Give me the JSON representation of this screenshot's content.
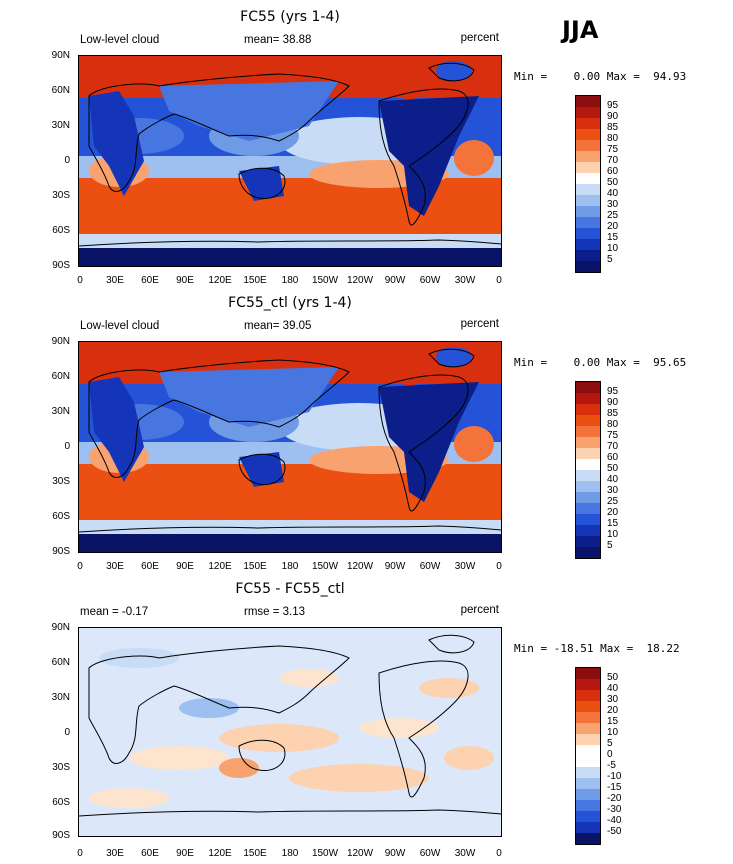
{
  "season": "JJA",
  "x_ticks": [
    "0",
    "30E",
    "60E",
    "90E",
    "120E",
    "150E",
    "180",
    "150W",
    "120W",
    "90W",
    "60W",
    "30W",
    "0"
  ],
  "y_ticks": [
    "90N",
    "60N",
    "30N",
    "0",
    "30S",
    "60S",
    "90S"
  ],
  "panels": [
    {
      "title": "FC55 (yrs 1-4)",
      "left_label": "Low-level cloud",
      "mid_label": "mean=  38.88",
      "right_label": "percent",
      "minmax": "Min =    0.00 Max =  94.93",
      "colorbar_labels": [
        "95",
        "90",
        "85",
        "80",
        "75",
        "70",
        "60",
        "50",
        "40",
        "30",
        "25",
        "20",
        "15",
        "10",
        "5"
      ]
    },
    {
      "title": "FC55_ctl (yrs 1-4)",
      "left_label": "Low-level cloud",
      "mid_label": "mean=  39.05",
      "right_label": "percent",
      "minmax": "Min =    0.00 Max =  95.65",
      "colorbar_labels": [
        "95",
        "90",
        "85",
        "80",
        "75",
        "70",
        "60",
        "50",
        "40",
        "30",
        "25",
        "20",
        "15",
        "10",
        "5"
      ]
    },
    {
      "title": "FC55 - FC55_ctl",
      "left_label": "mean =  -0.17",
      "mid_label": "rmse =   3.13",
      "right_label": "percent",
      "minmax": "Min = -18.51 Max =  18.22",
      "colorbar_labels": [
        "50",
        "40",
        "30",
        "20",
        "15",
        "10",
        "5",
        "0",
        "-5",
        "-10",
        "-15",
        "-20",
        "-30",
        "-40",
        "-50"
      ]
    }
  ],
  "colors": {
    "cloud_scale": [
      "#8b0d0d",
      "#b3170f",
      "#d8300f",
      "#ec4f12",
      "#f4733b",
      "#f8a270",
      "#fcd2b0",
      "#ffffff",
      "#c8dcf6",
      "#9dc0f0",
      "#6f9be6",
      "#4776e0",
      "#2553d8",
      "#1535b8",
      "#0c1e8a",
      "#0a1466"
    ],
    "diff_scale": [
      "#8b0d0d",
      "#b3170f",
      "#d8300f",
      "#ec4f12",
      "#f4733b",
      "#f8a270",
      "#fcd2b0",
      "#ffffff",
      "#ffffff",
      "#c8dcf6",
      "#9dc0f0",
      "#6f9be6",
      "#4776e0",
      "#2553d8",
      "#1535b8",
      "#0a1466"
    ]
  }
}
